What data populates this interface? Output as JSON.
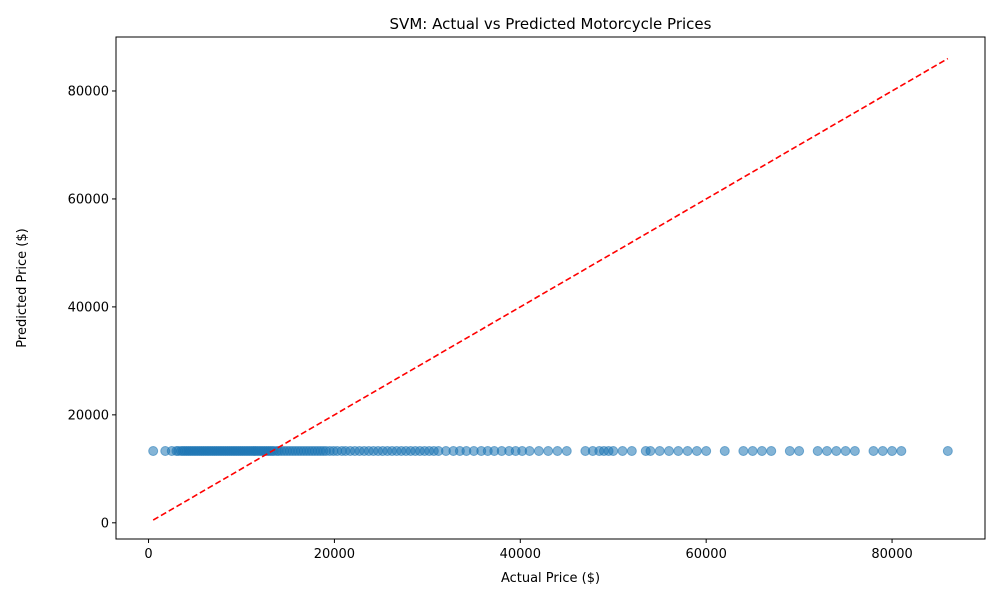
{
  "chart_data": {
    "type": "scatter",
    "title": "SVM: Actual vs Predicted Motorcycle Prices",
    "xlabel": "Actual Price ($)",
    "ylabel": "Predicted Price ($)",
    "xlim": [
      -3500,
      90000
    ],
    "ylim": [
      -3000,
      90000
    ],
    "x_ticks": [
      0,
      20000,
      40000,
      60000,
      80000
    ],
    "y_ticks": [
      0,
      20000,
      40000,
      60000,
      80000
    ],
    "x_tick_labels": [
      "0",
      "20000",
      "40000",
      "60000",
      "80000"
    ],
    "y_tick_labels": [
      "0",
      "20000",
      "40000",
      "60000",
      "80000"
    ],
    "grid": false,
    "legend": "none",
    "point_color": "#1f77b4",
    "point_alpha": 0.55,
    "reference_line": {
      "style": "dashed",
      "color": "#ff0000",
      "x": [
        500,
        86000
      ],
      "y": [
        500,
        86000
      ]
    },
    "series": [
      {
        "predicted_value": 13300,
        "x": [
          500,
          1800,
          2500,
          3000,
          3200,
          3500,
          3700,
          3900,
          4100,
          4300,
          4500,
          4700,
          4900,
          5100,
          5300,
          5500,
          5700,
          5900,
          6100,
          6300,
          6500,
          6700,
          6900,
          7100,
          7300,
          7500,
          7700,
          7900,
          8100,
          8300,
          8500,
          8700,
          8900,
          9100,
          9300,
          9500,
          9700,
          9900,
          10100,
          10300,
          10500,
          10700,
          10900,
          11100,
          11300,
          11500,
          11700,
          11900,
          12100,
          12300,
          12500,
          12700,
          12900,
          13100,
          13300,
          13500,
          13800,
          14000,
          14300,
          14600,
          14900,
          15200,
          15500,
          15800,
          16100,
          16400,
          16700,
          17000,
          17300,
          17600,
          17900,
          18200,
          18500,
          18800,
          19100,
          19500,
          19900,
          20300,
          20800,
          21200,
          21700,
          22200,
          22700,
          23200,
          23700,
          24200,
          24700,
          25200,
          25700,
          26200,
          26700,
          27200,
          27700,
          28200,
          28700,
          29200,
          29700,
          30200,
          30700,
          31200,
          32000,
          32800,
          33500,
          34200,
          35000,
          35800,
          36500,
          37200,
          38000,
          38800,
          39500,
          40200,
          41000,
          42000,
          43000,
          44000,
          45000,
          47000,
          47800,
          48500,
          49000,
          49500,
          50000,
          51000,
          52000,
          53500,
          54000,
          55000,
          56000,
          57000,
          58000,
          59000,
          60000,
          62000,
          64000,
          65000,
          66000,
          67000,
          69000,
          70000,
          72000,
          73000,
          74000,
          75000,
          76000,
          78000,
          79000,
          80000,
          81000,
          86000
        ]
      }
    ]
  }
}
